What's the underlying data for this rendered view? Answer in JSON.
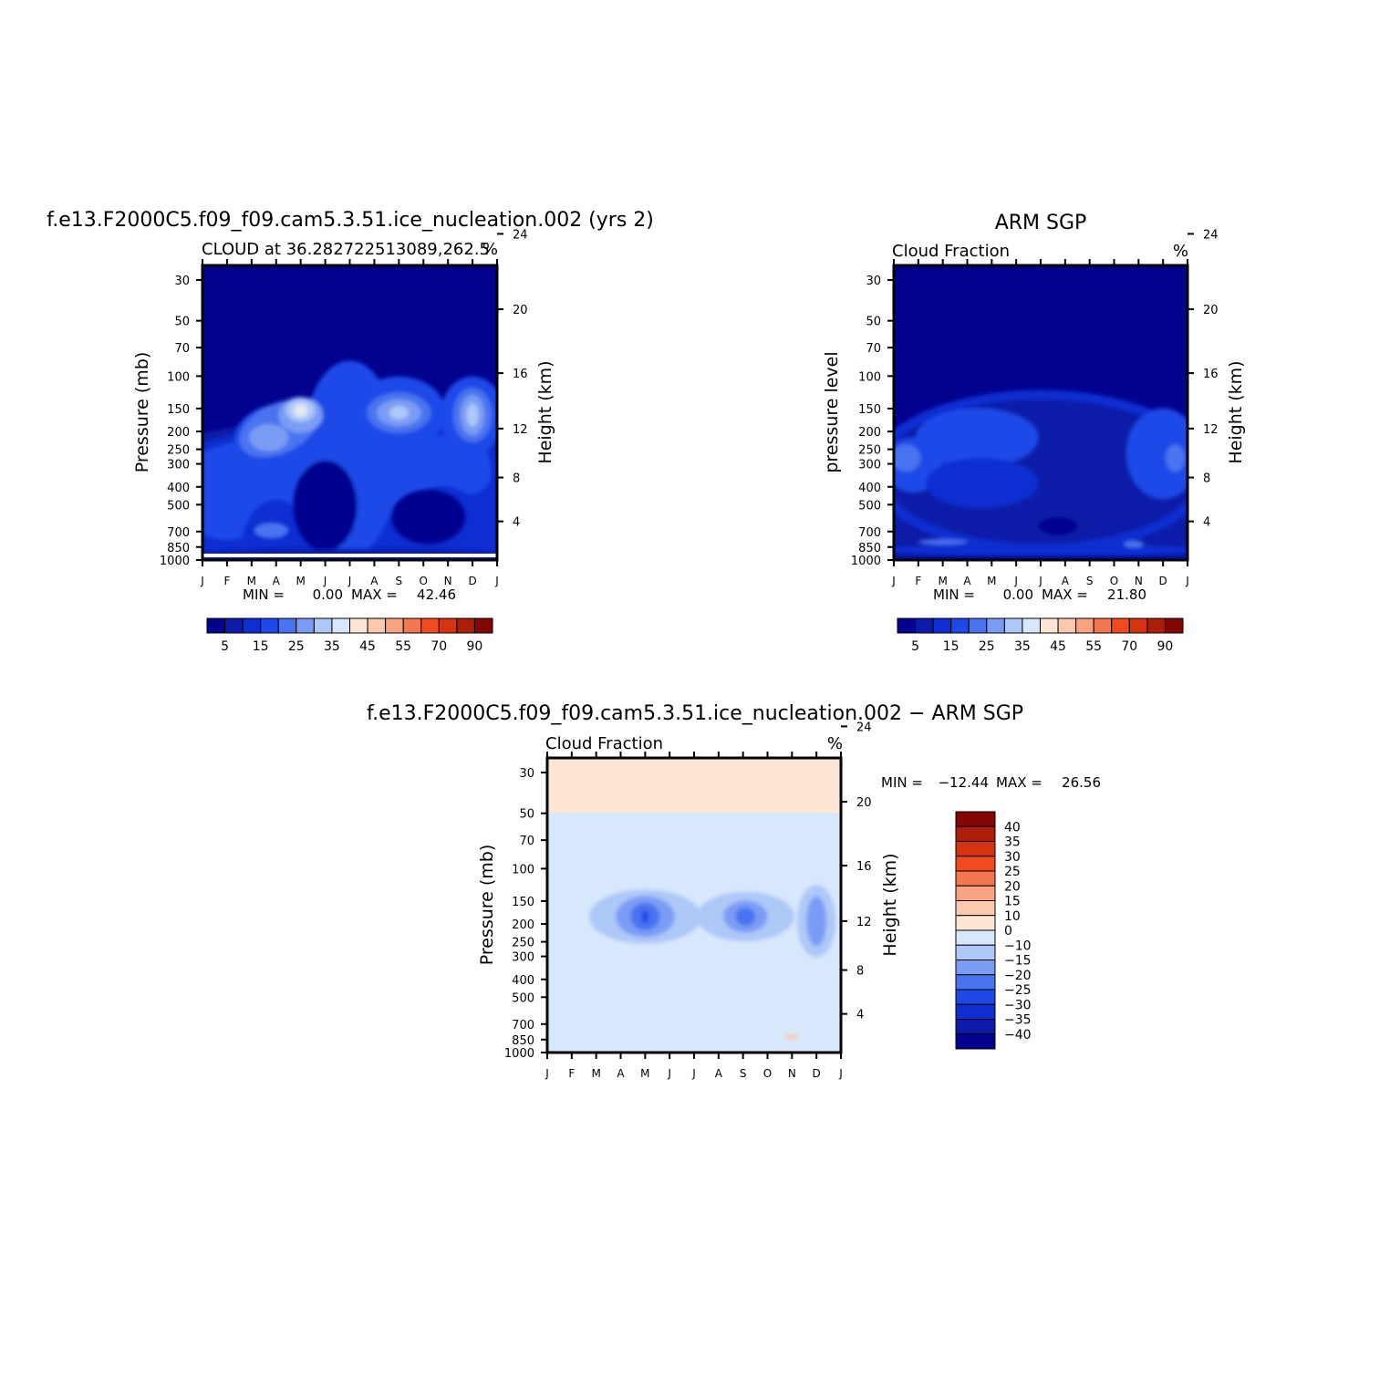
{
  "chart_data": [
    {
      "type": "heatmap",
      "main_title": "f.e13.F2000C5.f09_f09.cam5.3.51.ice_nucleation.002 (yrs 2)",
      "subtitle_left": "CLOUD at 36.282722513089,262.5",
      "subtitle_right": "%",
      "ylabel": "Pressure (mb)",
      "ylabel_right": "Height (km)",
      "x_categories": [
        "J",
        "F",
        "M",
        "A",
        "M",
        "J",
        "J",
        "A",
        "S",
        "O",
        "N",
        "D",
        "J"
      ],
      "y_ticks": [
        30,
        50,
        70,
        100,
        150,
        200,
        250,
        300,
        400,
        500,
        700,
        850,
        1000
      ],
      "y_right_ticks": [
        4,
        8,
        12,
        16,
        20,
        24
      ],
      "min_label": "MIN =",
      "min_value": "0.00",
      "max_label": "MAX =",
      "max_value": "42.46",
      "colorbar_colors": [
        "#03028e",
        "#0b1aa8",
        "#0f2ed1",
        "#1e48e8",
        "#4a73f0",
        "#7a9cf4",
        "#aec8f8",
        "#d8e8fc",
        "#fde7d4",
        "#fbc9ad",
        "#f8a382",
        "#f5774f",
        "#f04a1e",
        "#d53410",
        "#ad1e08",
        "#820601"
      ],
      "colorbar_labels": [
        "5",
        "15",
        "25",
        "35",
        "45",
        "55",
        "70",
        "90"
      ],
      "blobs": [
        {
          "cx": 6.0,
          "cy": 8.5,
          "rx": 2.0,
          "ry": 4.3,
          "rot": 0,
          "level": 3
        },
        {
          "cx": 3.3,
          "cy": 7.7,
          "rx": 2.0,
          "ry": 1.6,
          "rot": 0,
          "level": 3
        },
        {
          "cx": 8.0,
          "cy": 6.5,
          "rx": 1.9,
          "ry": 1.6,
          "rot": 0,
          "level": 3
        },
        {
          "cx": 11.0,
          "cy": 6.6,
          "rx": 1.3,
          "ry": 1.7,
          "rot": 0,
          "level": 3
        },
        {
          "cx": 3.1,
          "cy": 7.2,
          "rx": 1.7,
          "ry": 1.1,
          "rot": -25,
          "level": 4
        },
        {
          "cx": 8.0,
          "cy": 6.5,
          "rx": 1.3,
          "ry": 0.9,
          "rot": 0,
          "level": 4
        },
        {
          "cx": 11.0,
          "cy": 6.6,
          "rx": 0.8,
          "ry": 1.2,
          "rot": 0,
          "level": 4
        },
        {
          "cx": 2.7,
          "cy": 7.6,
          "rx": 0.8,
          "ry": 0.6,
          "rot": 0,
          "level": 5
        },
        {
          "cx": 4.0,
          "cy": 6.6,
          "rx": 0.9,
          "ry": 0.8,
          "rot": 0,
          "level": 5
        },
        {
          "cx": 8.0,
          "cy": 6.5,
          "rx": 0.9,
          "ry": 0.6,
          "rot": 0,
          "level": 5
        },
        {
          "cx": 11.0,
          "cy": 6.6,
          "rx": 0.5,
          "ry": 0.9,
          "rot": 0,
          "level": 5
        },
        {
          "cx": 4.0,
          "cy": 6.4,
          "rx": 0.6,
          "ry": 0.5,
          "rot": 0,
          "level": 6
        },
        {
          "cx": 8.0,
          "cy": 6.5,
          "rx": 0.4,
          "ry": 0.3,
          "rot": 0,
          "level": 6
        },
        {
          "cx": 11.0,
          "cy": 6.6,
          "rx": 0.25,
          "ry": 0.5,
          "rot": 0,
          "level": 6
        },
        {
          "cx": 4.0,
          "cy": 6.4,
          "rx": 0.3,
          "ry": 0.3,
          "rot": 0,
          "level": 7
        },
        {
          "cx": 4.0,
          "cy": 6.4,
          "rx": 0.1,
          "ry": 0.15,
          "rot": 0,
          "level": 8
        },
        {
          "cx": 5.0,
          "cy": 10.6,
          "rx": 1.3,
          "ry": 2.0,
          "rot": 0,
          "level": 0
        },
        {
          "cx": 9.2,
          "cy": 11.1,
          "rx": 1.5,
          "ry": 1.2,
          "rot": 0,
          "level": 0
        },
        {
          "cx": 2.8,
          "cy": 11.7,
          "rx": 0.7,
          "ry": 0.35,
          "rot": 0,
          "level": 4
        },
        {
          "cx": 6.0,
          "cy": 12.75,
          "rx": 6.5,
          "ry": 0.25,
          "rot": 0,
          "level": 1
        }
      ]
    },
    {
      "type": "heatmap",
      "main_title": "ARM SGP",
      "subtitle_left": "Cloud Fraction",
      "subtitle_right": "%",
      "ylabel": "pressure level",
      "ylabel_right": "Height (km)",
      "x_categories": [
        "J",
        "F",
        "M",
        "A",
        "M",
        "J",
        "J",
        "A",
        "S",
        "O",
        "N",
        "D",
        "J"
      ],
      "y_ticks": [
        30,
        50,
        70,
        100,
        150,
        200,
        250,
        300,
        400,
        500,
        700,
        850,
        1000
      ],
      "y_right_ticks": [
        4,
        8,
        12,
        16,
        20,
        24
      ],
      "min_label": "MIN =",
      "min_value": "0.00",
      "max_label": "MAX =",
      "max_value": "21.80",
      "colorbar_colors": [
        "#03028e",
        "#0b1aa8",
        "#0f2ed1",
        "#1e48e8",
        "#4a73f0",
        "#7a9cf4",
        "#aec8f8",
        "#d8e8fc",
        "#fde7d4",
        "#fbc9ad",
        "#f8a382",
        "#f5774f",
        "#f04a1e",
        "#d53410",
        "#ad1e08",
        "#820601"
      ],
      "colorbar_labels": [
        "5",
        "15",
        "25",
        "35",
        "45",
        "55",
        "70",
        "90"
      ],
      "blobs": [
        {
          "cx": 6.0,
          "cy": 9.1,
          "rx": 7.0,
          "ry": 3.6,
          "rot": 0,
          "level": 2
        },
        {
          "cx": 6.0,
          "cy": 9.1,
          "rx": 6.5,
          "ry": 3.2,
          "rot": 0,
          "level": 1
        },
        {
          "cx": 3.4,
          "cy": 7.6,
          "rx": 2.5,
          "ry": 1.3,
          "rot": 0,
          "level": 3
        },
        {
          "cx": 11.0,
          "cy": 8.3,
          "rx": 1.5,
          "ry": 2.0,
          "rot": 0,
          "level": 3
        },
        {
          "cx": 0.8,
          "cy": 8.8,
          "rx": 1.2,
          "ry": 1.2,
          "rot": 0,
          "level": 3
        },
        {
          "cx": 3.6,
          "cy": 9.6,
          "rx": 2.3,
          "ry": 1.1,
          "rot": 0,
          "level": 2
        },
        {
          "cx": 0.5,
          "cy": 8.5,
          "rx": 0.6,
          "ry": 0.6,
          "rot": 0,
          "level": 4
        },
        {
          "cx": 11.5,
          "cy": 8.5,
          "rx": 0.4,
          "ry": 0.6,
          "rot": 0,
          "level": 4
        },
        {
          "cx": 6.0,
          "cy": 12.55,
          "rx": 6.4,
          "ry": 0.28,
          "rot": 0,
          "level": 2
        },
        {
          "cx": 6.7,
          "cy": 11.5,
          "rx": 0.8,
          "ry": 0.4,
          "rot": 0,
          "level": 0
        },
        {
          "cx": 2.0,
          "cy": 12.2,
          "rx": 1.0,
          "ry": 0.12,
          "rot": 0,
          "level": 4
        },
        {
          "cx": 9.8,
          "cy": 12.3,
          "rx": 0.4,
          "ry": 0.15,
          "rot": 0,
          "level": 4
        },
        {
          "cx": 6.0,
          "cy": 12.9,
          "rx": 6.5,
          "ry": 0.1,
          "rot": 0,
          "level": 0
        }
      ]
    },
    {
      "type": "heatmap",
      "main_title": "f.e13.F2000C5.f09_f09.cam5.3.51.ice_nucleation.002 − ARM SGP",
      "subtitle_left": "Cloud Fraction",
      "subtitle_right": "%",
      "ylabel": "Pressure (mb)",
      "ylabel_right": "Height (km)",
      "x_categories": [
        "J",
        "F",
        "M",
        "A",
        "M",
        "J",
        "J",
        "A",
        "S",
        "O",
        "N",
        "D",
        "J"
      ],
      "y_ticks": [
        30,
        50,
        70,
        100,
        150,
        200,
        250,
        300,
        400,
        500,
        700,
        850,
        1000
      ],
      "y_right_ticks": [
        4,
        8,
        12,
        16,
        20,
        24
      ],
      "min_label": "MIN =",
      "min_value": "−12.44",
      "max_label": "MAX =",
      "max_value": "26.56",
      "colorbar_colors": [
        "#820601",
        "#ad1e08",
        "#d53410",
        "#f04a1e",
        "#f5774f",
        "#f8a382",
        "#fbc9ad",
        "#fde7d4",
        "#d8e8fc",
        "#aec8f8",
        "#7a9cf4",
        "#4a73f0",
        "#1e48e8",
        "#0f2ed1",
        "#0b1aa8",
        "#03028e"
      ],
      "colorbar_labels": [
        "40",
        "35",
        "30",
        "25",
        "20",
        "15",
        "10",
        "0",
        "−10",
        "−15",
        "−20",
        "−25",
        "−30",
        "−35",
        "−40"
      ],
      "blobs": [
        {
          "cx": 6.0,
          "cy": 6.3,
          "rx": 6.5,
          "ry": 2.3,
          "rot": 0,
          "level": 8
        },
        {
          "cx": 1.4,
          "cy": 9.0,
          "rx": 1.1,
          "ry": 3.9,
          "rot": 0,
          "level": 8
        },
        {
          "cx": 11.4,
          "cy": 8.5,
          "rx": 0.9,
          "ry": 3.0,
          "rot": 0,
          "level": 8
        },
        {
          "cx": 8.5,
          "cy": 11.3,
          "rx": 1.5,
          "ry": 0.35,
          "rot": 0,
          "level": 8
        },
        {
          "cx": 4.0,
          "cy": 7.0,
          "rx": 2.3,
          "ry": 1.2,
          "rot": 0,
          "level": 9
        },
        {
          "cx": 8.1,
          "cy": 7.0,
          "rx": 2.0,
          "ry": 1.1,
          "rot": 0,
          "level": 9
        },
        {
          "cx": 11.0,
          "cy": 7.2,
          "rx": 0.8,
          "ry": 1.6,
          "rot": 0,
          "level": 9
        },
        {
          "cx": 4.0,
          "cy": 7.0,
          "rx": 1.2,
          "ry": 0.9,
          "rot": 0,
          "level": 10
        },
        {
          "cx": 8.1,
          "cy": 7.0,
          "rx": 0.9,
          "ry": 0.7,
          "rot": 0,
          "level": 10
        },
        {
          "cx": 11.0,
          "cy": 7.2,
          "rx": 0.4,
          "ry": 1.1,
          "rot": 0,
          "level": 10
        },
        {
          "cx": 4.0,
          "cy": 7.0,
          "rx": 0.6,
          "ry": 0.6,
          "rot": 0,
          "level": 11
        },
        {
          "cx": 8.1,
          "cy": 7.0,
          "rx": 0.4,
          "ry": 0.4,
          "rot": 0,
          "level": 11
        },
        {
          "cx": 4.0,
          "cy": 7.0,
          "rx": 0.15,
          "ry": 0.3,
          "rot": 0,
          "level": 12
        },
        {
          "cx": 10.0,
          "cy": 12.3,
          "rx": 0.3,
          "ry": 0.1,
          "rot": 0,
          "level": 6
        }
      ]
    }
  ]
}
